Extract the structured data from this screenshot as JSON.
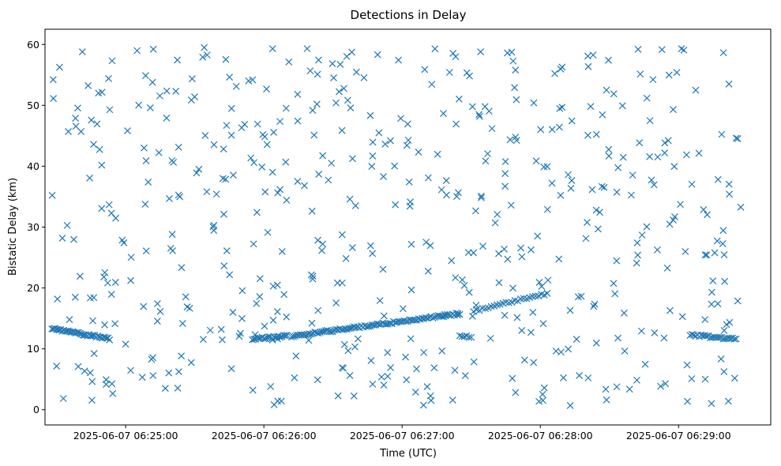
{
  "chart_data": {
    "type": "scatter",
    "title": "Detections in Delay",
    "xlabel": "Time (UTC)",
    "ylabel": "Bistatic Delay (km)",
    "marker": "x",
    "color": "#1f77b4",
    "grid": false,
    "xticks": [
      "2025-06-07 06:25:00",
      "2025-06-07 06:26:00",
      "2025-06-07 06:27:00",
      "2025-06-07 06:28:00",
      "2025-06-07 06:29:00"
    ],
    "yticks": [
      0,
      10,
      20,
      30,
      40,
      50,
      60
    ],
    "xlim": [
      "2025-06-07 06:24:25",
      "2025-06-07 06:29:40"
    ],
    "ylim": [
      -2.5,
      62.5
    ],
    "track_segments": [
      {
        "t_start": "2025-06-07 06:24:28",
        "t_end": "2025-06-07 06:24:53",
        "y_start": 13.3,
        "y_end": 11.6,
        "count": 40
      },
      {
        "t_start": "2025-06-07 06:25:55",
        "t_end": "2025-06-07 06:26:10",
        "y_start": 11.6,
        "y_end": 12.1,
        "count": 22
      },
      {
        "t_start": "2025-06-07 06:26:12",
        "t_end": "2025-06-07 06:27:25",
        "y_start": 12.1,
        "y_end": 15.8,
        "count": 95
      },
      {
        "t_start": "2025-06-07 06:27:25",
        "t_end": "2025-06-07 06:27:30",
        "y_start": 12.0,
        "y_end": 12.0,
        "count": 6
      },
      {
        "t_start": "2025-06-07 06:27:31",
        "t_end": "2025-06-07 06:28:03",
        "y_start": 16.2,
        "y_end": 19.1,
        "count": 26
      },
      {
        "t_start": "2025-06-07 06:29:05",
        "t_end": "2025-06-07 06:29:25",
        "y_start": 12.3,
        "y_end": 11.6,
        "count": 26
      }
    ],
    "clutter": {
      "t_start": "2025-06-07 06:24:28",
      "t_end": "2025-06-07 06:29:27",
      "y_min": 0.5,
      "y_max": 59.8,
      "count": 540
    }
  }
}
